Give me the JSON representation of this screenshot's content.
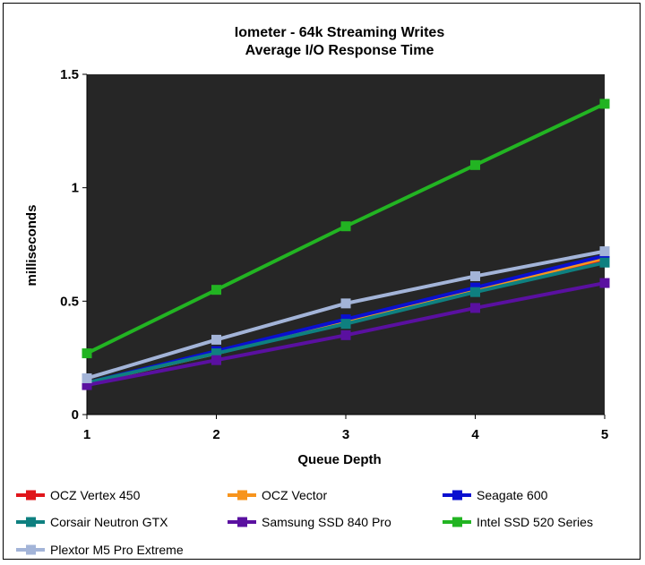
{
  "chart_data": {
    "type": "line",
    "title": [
      "Iometer - 64k Streaming Writes",
      "Average I/O Response Time"
    ],
    "xlabel": "Queue Depth",
    "ylabel": "milliseconds",
    "x": [
      1,
      2,
      3,
      4,
      5
    ],
    "x_tick_labels": [
      "1",
      "2",
      "3",
      "4",
      "5"
    ],
    "ylim": [
      0,
      1.5
    ],
    "y_ticks": [
      0,
      0.5,
      1,
      1.5
    ],
    "y_tick_labels": [
      "0",
      "0.5",
      "1",
      "1.5"
    ],
    "grid": false,
    "plot_background": "#262626",
    "legend_position": "bottom",
    "series": [
      {
        "name": "OCZ Vertex 450",
        "color": "#e0161b",
        "values": [
          0.14,
          0.27,
          0.41,
          0.55,
          0.68
        ]
      },
      {
        "name": "OCZ Vector",
        "color": "#f7941d",
        "values": [
          0.14,
          0.27,
          0.41,
          0.55,
          0.69
        ]
      },
      {
        "name": "Seagate 600",
        "color": "#0a10d0",
        "values": [
          0.14,
          0.28,
          0.42,
          0.56,
          0.7
        ]
      },
      {
        "name": "Corsair Neutron GTX",
        "color": "#0e8080",
        "values": [
          0.14,
          0.27,
          0.4,
          0.54,
          0.67
        ]
      },
      {
        "name": "Samsung SSD 840 Pro",
        "color": "#5a10a0",
        "values": [
          0.13,
          0.24,
          0.35,
          0.47,
          0.58
        ]
      },
      {
        "name": "Intel SSD 520 Series",
        "color": "#22b422",
        "values": [
          0.27,
          0.55,
          0.83,
          1.1,
          1.37
        ]
      },
      {
        "name": "Plextor M5 Pro Extreme",
        "color": "#a3b4d8",
        "values": [
          0.16,
          0.33,
          0.49,
          0.61,
          0.72
        ]
      }
    ]
  }
}
